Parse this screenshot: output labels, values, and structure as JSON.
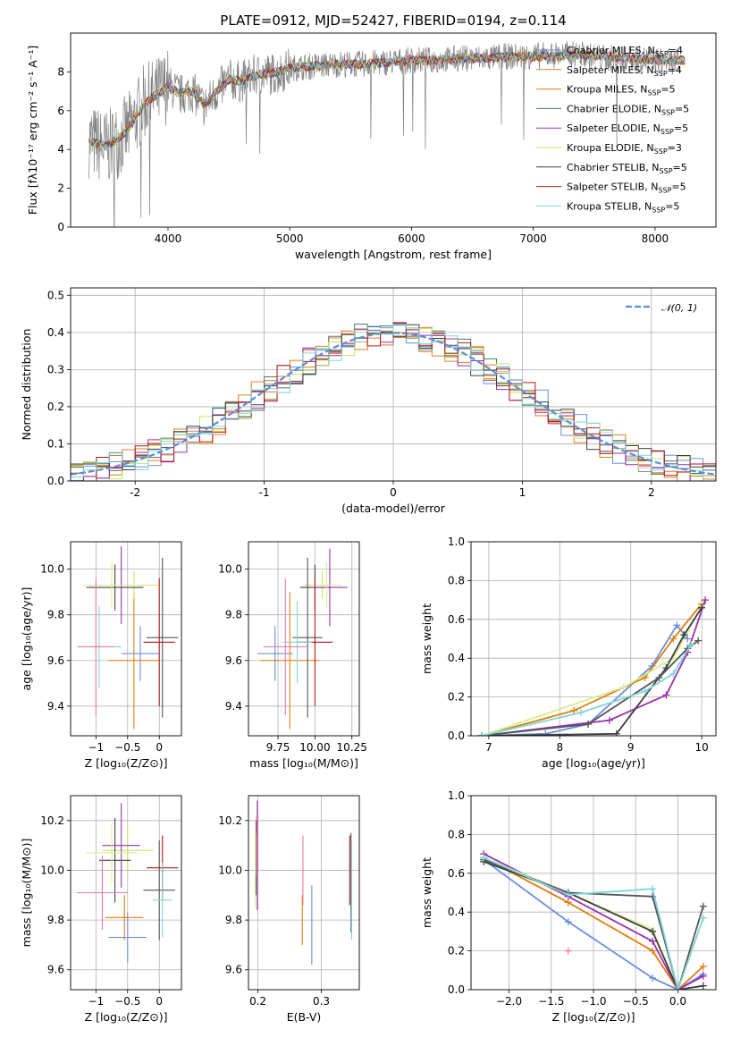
{
  "title": "PLATE=0912, MJD=52427, FIBERID=0194, z=0.114",
  "models": [
    {
      "name": "Chabrier MILES",
      "nssp": "4",
      "color": "#6b8fe0"
    },
    {
      "name": "Salpeter MILES",
      "nssp": "4",
      "color": "#e87d2f"
    },
    {
      "name": "Kroupa MILES",
      "nssp": "5",
      "color": "#e07d10"
    },
    {
      "name": "Chabrier ELODIE",
      "nssp": "5",
      "color": "#3f7f74"
    },
    {
      "name": "Salpeter ELODIE",
      "nssp": "5",
      "color": "#9b2fae"
    },
    {
      "name": "Kroupa ELODIE",
      "nssp": "3",
      "color": "#c7e66a"
    },
    {
      "name": "Chabrier STELIB",
      "nssp": "5",
      "color": "#404040"
    },
    {
      "name": "Salpeter STELIB",
      "nssp": "5",
      "color": "#b21a1a"
    },
    {
      "name": "Kroupa STELIB",
      "nssp": "5",
      "color": "#7fd6d6"
    }
  ],
  "chart_data": [
    {
      "id": "spectrum",
      "type": "line",
      "xlabel": "wavelength [Angstrom, rest frame]",
      "ylabel": "Flux [fλ10⁻¹⁷ erg cm⁻² s⁻¹ A⁻¹]",
      "xlim": [
        3200,
        8500
      ],
      "ylim": [
        0,
        10
      ],
      "xticks": [
        4000,
        5000,
        6000,
        7000,
        8000
      ],
      "yticks": [
        0,
        2,
        4,
        6,
        8
      ],
      "data_color": "#808080",
      "data_x": [
        3350,
        3400,
        3500,
        3600,
        3700,
        3800,
        3900,
        4000,
        4100,
        4200,
        4300,
        4400,
        4500,
        4600,
        4700,
        4800,
        4900,
        5000,
        5200,
        5400,
        5600,
        5800,
        6000,
        6200,
        6400,
        6600,
        6800,
        7000,
        7200,
        7400,
        7600,
        7800,
        8000,
        8200
      ],
      "data_y": [
        4.5,
        4.3,
        4.1,
        4.5,
        5.2,
        6.4,
        6.8,
        7.3,
        6.8,
        7.0,
        6.2,
        7.0,
        7.6,
        7.5,
        7.8,
        7.9,
        7.9,
        8.2,
        8.3,
        8.4,
        8.4,
        8.5,
        8.6,
        8.6,
        8.7,
        8.7,
        8.8,
        8.8,
        8.9,
        8.9,
        8.7,
        8.7,
        8.6,
        8.5
      ],
      "model_y": [
        4.5,
        4.3,
        4.2,
        4.6,
        5.3,
        6.3,
        6.8,
        7.2,
        6.9,
        7.0,
        6.3,
        7.0,
        7.6,
        7.5,
        7.8,
        7.9,
        8.0,
        8.2,
        8.3,
        8.4,
        8.4,
        8.5,
        8.6,
        8.6,
        8.7,
        8.7,
        8.8,
        8.8,
        8.8,
        8.9,
        8.8,
        8.7,
        8.6,
        8.6
      ]
    },
    {
      "id": "residuals",
      "type": "histogram",
      "xlabel": "(data-model)/error",
      "ylabel": "Normed distribution",
      "xlim": [
        -2.5,
        2.5
      ],
      "ylim": [
        0,
        0.52
      ],
      "xticks": [
        -2,
        -1,
        0,
        1,
        2
      ],
      "yticks": [
        0.0,
        0.1,
        0.2,
        0.3,
        0.4,
        0.5
      ],
      "reference_label": "𝒩(0, 1)",
      "reference_color": "#5a8fd6",
      "bin_edges_start": -2.5,
      "bin_width": 0.1
    },
    {
      "id": "age_vs_z",
      "type": "errorbar",
      "xlabel": "Z [log₁₀(Z/Z⊙)]",
      "ylabel": "age  [log₁₀(age/yr)]",
      "xlim": [
        -1.4,
        0.35
      ],
      "ylim": [
        9.27,
        10.12
      ],
      "xticks": [
        -1,
        -0.5,
        0
      ],
      "xticklabels": [
        "−1",
        "−0.5",
        "0"
      ],
      "yticks": [
        9.4,
        9.6,
        9.8,
        10.0
      ],
      "points": [
        {
          "x": -0.3,
          "xe": 0.3,
          "y": 9.63,
          "ye": 0.12,
          "c": 0
        },
        {
          "x": -0.4,
          "xe": 0.4,
          "y": 9.6,
          "ye": 0.3,
          "c": 1
        },
        {
          "x": -0.4,
          "xe": 0.4,
          "y": 9.93,
          "ye": 0.06,
          "c": 2
        },
        {
          "x": -0.7,
          "xe": 0.45,
          "y": 9.92,
          "ye": 0.1,
          "c": 3
        },
        {
          "x": -0.6,
          "xe": 0.3,
          "y": 9.93,
          "ye": 0.17,
          "c": 4
        },
        {
          "x": -0.75,
          "xe": 0.45,
          "y": 9.93,
          "ye": 0.1,
          "c": 5
        },
        {
          "x": 0.05,
          "xe": 0.25,
          "y": 9.7,
          "ye": 0.35,
          "c": 6
        },
        {
          "x": 0.0,
          "xe": 0.25,
          "y": 9.68,
          "ye": 0.28,
          "c": 7
        },
        {
          "x": -0.95,
          "xe": 0.35,
          "y": 9.66,
          "ye": 0.18,
          "c": 8
        },
        {
          "x": -1.0,
          "xe": 0.28,
          "y": 9.66,
          "ye": 0.3,
          "c": 9
        }
      ]
    },
    {
      "id": "age_vs_mass",
      "type": "errorbar",
      "xlabel": "mass [log₁₀(M/M⊙)]",
      "ylabel": "",
      "xlim": [
        9.55,
        10.3
      ],
      "ylim": [
        9.27,
        10.12
      ],
      "xticks": [
        9.75,
        10.0,
        10.25
      ],
      "xticklabels": [
        "9.75",
        "10.00",
        "10.25"
      ],
      "yticks": [
        9.4,
        9.6,
        9.8,
        10.0
      ],
      "points": [
        {
          "x": 9.73,
          "xe": 0.12,
          "y": 9.63,
          "ye": 0.12,
          "c": 0
        },
        {
          "x": 9.83,
          "xe": 0.2,
          "y": 9.6,
          "ye": 0.3,
          "c": 1
        },
        {
          "x": 10.05,
          "xe": 0.12,
          "y": 9.93,
          "ye": 0.06,
          "c": 2
        },
        {
          "x": 10.0,
          "xe": 0.1,
          "y": 9.92,
          "ye": 0.1,
          "c": 3
        },
        {
          "x": 10.1,
          "xe": 0.12,
          "y": 9.92,
          "ye": 0.17,
          "c": 4
        },
        {
          "x": 10.08,
          "xe": 0.1,
          "y": 9.93,
          "ye": 0.1,
          "c": 5
        },
        {
          "x": 9.95,
          "xe": 0.1,
          "y": 9.7,
          "ye": 0.35,
          "c": 6
        },
        {
          "x": 10.0,
          "xe": 0.12,
          "y": 9.68,
          "ye": 0.28,
          "c": 7
        },
        {
          "x": 9.88,
          "xe": 0.1,
          "y": 9.68,
          "ye": 0.18,
          "c": 8
        },
        {
          "x": 9.8,
          "xe": 0.15,
          "y": 9.66,
          "ye": 0.3,
          "c": 9
        }
      ]
    },
    {
      "id": "weight_vs_age",
      "type": "line",
      "xlabel": "age  [log₁₀(age/yr)]",
      "ylabel": "mass weight",
      "xlim": [
        6.75,
        10.2
      ],
      "ylim": [
        0,
        1
      ],
      "xticks": [
        7,
        8,
        9,
        10
      ],
      "yticks": [
        0.0,
        0.2,
        0.4,
        0.6,
        0.8,
        1.0
      ],
      "series": [
        {
          "c": 0,
          "x": [
            6.9,
            7.8,
            8.4,
            9.3,
            9.65,
            9.8
          ],
          "y": [
            0,
            0.01,
            0.06,
            0.36,
            0.57,
            0.5
          ]
        },
        {
          "c": 1,
          "x": [
            6.9,
            8.2,
            9.2,
            9.6,
            10.0
          ],
          "y": [
            0,
            0.13,
            0.3,
            0.5,
            0.68
          ]
        },
        {
          "c": 4,
          "x": [
            6.9,
            8.7,
            9.5,
            9.8,
            10.05
          ],
          "y": [
            0,
            0.08,
            0.21,
            0.43,
            0.7
          ]
        },
        {
          "c": 5,
          "x": [
            6.9,
            8.9,
            9.6,
            10.0
          ],
          "y": [
            0,
            0.25,
            0.4,
            0.67
          ]
        },
        {
          "c": 3,
          "x": [
            6.9,
            8.8,
            9.5,
            9.75,
            10.0
          ],
          "y": [
            0,
            0.01,
            0.35,
            0.52,
            0.66
          ]
        },
        {
          "c": 6,
          "x": [
            6.9,
            8.4,
            9.4,
            9.8,
            9.95
          ],
          "y": [
            0,
            0.06,
            0.3,
            0.45,
            0.49
          ]
        },
        {
          "c": 8,
          "x": [
            6.9,
            8.3,
            9.2,
            9.6,
            9.85
          ],
          "y": [
            0,
            0.12,
            0.23,
            0.32,
            0.47
          ]
        }
      ]
    },
    {
      "id": "mass_vs_z",
      "type": "errorbar",
      "xlabel": "Z [log₁₀(Z/Z⊙)]",
      "ylabel": "mass [log₁₀(M/M⊙)]",
      "xlim": [
        -1.4,
        0.35
      ],
      "ylim": [
        9.52,
        10.3
      ],
      "xticks": [
        -1,
        -0.5,
        0
      ],
      "xticklabels": [
        "−1",
        "−0.5",
        "0"
      ],
      "yticks": [
        9.6,
        9.8,
        10.0,
        10.2
      ],
      "points": [
        {
          "x": -0.5,
          "xe": 0.3,
          "y": 9.73,
          "ye": 0.1,
          "c": 0
        },
        {
          "x": -0.55,
          "xe": 0.3,
          "y": 9.81,
          "ye": 0.09,
          "c": 1
        },
        {
          "x": -0.5,
          "xe": 0.4,
          "y": 10.08,
          "ye": 0.1,
          "c": 2
        },
        {
          "x": -0.7,
          "xe": 0.25,
          "y": 10.04,
          "ye": 0.17,
          "c": 3
        },
        {
          "x": -0.6,
          "xe": 0.3,
          "y": 10.1,
          "ye": 0.17,
          "c": 4
        },
        {
          "x": -0.75,
          "xe": 0.4,
          "y": 10.07,
          "ye": 0.12,
          "c": 5
        },
        {
          "x": 0.0,
          "xe": 0.25,
          "y": 9.92,
          "ye": 0.2,
          "c": 6
        },
        {
          "x": 0.05,
          "xe": 0.25,
          "y": 10.01,
          "ye": 0.13,
          "c": 7
        },
        {
          "x": 0.05,
          "xe": 0.15,
          "y": 9.88,
          "ye": 0.15,
          "c": 8
        },
        {
          "x": -0.9,
          "xe": 0.4,
          "y": 9.91,
          "ye": 0.15,
          "c": 9
        }
      ]
    },
    {
      "id": "mass_vs_ebv",
      "type": "errorbar",
      "xlabel": "E(B-V)",
      "ylabel": "",
      "xlim": [
        0.185,
        0.36
      ],
      "ylim": [
        9.52,
        10.3
      ],
      "xticks": [
        0.2,
        0.3
      ],
      "xticklabels": [
        "0.2",
        "0.3"
      ],
      "yticks": [
        9.6,
        9.8,
        10.0,
        10.2
      ],
      "points": [
        {
          "x": 0.197,
          "xe": 0,
          "y": 10.05,
          "ye": 0.15,
          "c": 3
        },
        {
          "x": 0.199,
          "xe": 0,
          "y": 10.06,
          "ye": 0.22,
          "c": 4
        },
        {
          "x": 0.196,
          "xe": 0,
          "y": 10.0,
          "ye": 0.15,
          "c": 5
        },
        {
          "x": 0.198,
          "xe": 0,
          "y": 10.1,
          "ye": 0.12,
          "c": 9
        },
        {
          "x": 0.27,
          "xe": 0,
          "y": 9.8,
          "ye": 0.1,
          "c": 1
        },
        {
          "x": 0.271,
          "xe": 0,
          "y": 10.0,
          "ye": 0.14,
          "c": 9
        },
        {
          "x": 0.285,
          "xe": 0,
          "y": 9.78,
          "ye": 0.16,
          "c": 0
        },
        {
          "x": 0.345,
          "xe": 0,
          "y": 10.0,
          "ye": 0.14,
          "c": 7
        },
        {
          "x": 0.347,
          "xe": 0,
          "y": 9.95,
          "ye": 0.2,
          "c": 6
        },
        {
          "x": 0.348,
          "xe": 0,
          "y": 9.92,
          "ye": 0.2,
          "c": 8
        }
      ]
    },
    {
      "id": "weight_vs_z",
      "type": "line",
      "xlabel": "Z [log₁₀(Z/Z⊙)]",
      "ylabel": "mass weight",
      "xlim": [
        -2.45,
        0.45
      ],
      "ylim": [
        0,
        1
      ],
      "xticks": [
        -2.0,
        -1.5,
        -1.0,
        -0.5,
        0.0
      ],
      "xticklabels": [
        "−2.0",
        "−1.5",
        "−1.0",
        "−0.5",
        "0.0"
      ],
      "yticks": [
        0.0,
        0.2,
        0.4,
        0.6,
        0.8,
        1.0
      ],
      "series": [
        {
          "c": 0,
          "x": [
            -2.3,
            -1.3,
            -0.3,
            0.0,
            0.3
          ],
          "y": [
            0.67,
            0.35,
            0.06,
            0,
            0.08
          ]
        },
        {
          "c": 1,
          "x": [
            -2.3,
            -1.3,
            -0.3,
            0.0,
            0.3
          ],
          "y": [
            0.68,
            0.45,
            0.2,
            0,
            0.12
          ]
        },
        {
          "c": 4,
          "x": [
            -2.3,
            -1.3,
            -0.3,
            0.0,
            0.3
          ],
          "y": [
            0.7,
            0.48,
            0.25,
            0,
            0.07
          ]
        },
        {
          "c": 5,
          "x": [
            -2.3,
            -1.3,
            -0.3,
            0.0,
            0.3
          ],
          "y": [
            0.68,
            0.5,
            0.31,
            0,
            0.37
          ]
        },
        {
          "c": 3,
          "x": [
            -2.3,
            -1.3,
            -0.3,
            0.0,
            0.3
          ],
          "y": [
            0.66,
            0.5,
            0.3,
            0,
            0.02
          ]
        },
        {
          "c": 6,
          "x": [
            -2.3,
            -1.3,
            -0.3,
            0.0,
            0.3
          ],
          "y": [
            0.67,
            0.5,
            0.48,
            0,
            0.43
          ]
        },
        {
          "c": 8,
          "x": [
            -2.3,
            -1.3,
            -0.3,
            0.0,
            0.3
          ],
          "y": [
            0.68,
            0.49,
            0.52,
            0,
            0.37
          ]
        },
        {
          "c": 9,
          "x": [
            -1.3
          ],
          "y": [
            0.2
          ]
        }
      ]
    }
  ],
  "palette": [
    "#6b8fe0",
    "#e07d10",
    "#c7e66a",
    "#404040",
    "#9b2fae",
    "#d4ef8f",
    "#555555",
    "#b21a1a",
    "#7fd6d6",
    "#f07aa8"
  ]
}
